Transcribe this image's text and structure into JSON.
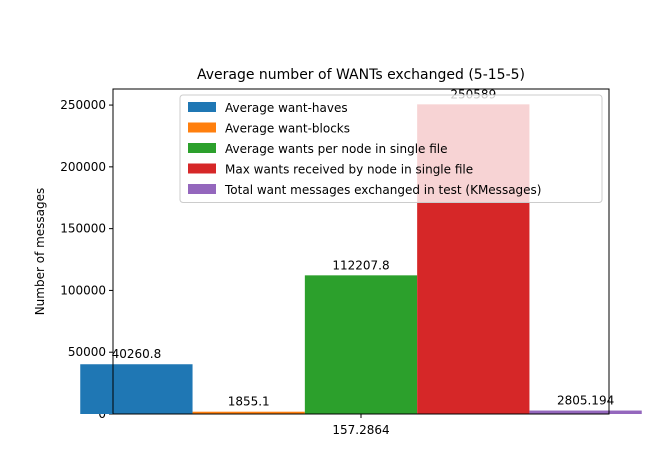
{
  "chart_data": {
    "type": "bar",
    "title": "Average number of WANTs exchanged (5-15-5)",
    "xlabel": "",
    "ylabel": "Number of messages",
    "categories": [
      "157.2864"
    ],
    "ylim": [
      0,
      263000
    ],
    "yticks": [
      0,
      50000,
      100000,
      150000,
      200000,
      250000
    ],
    "ytick_labels": [
      "0",
      "50000",
      "100000",
      "150000",
      "200000",
      "250000"
    ],
    "grid": false,
    "legend_position": "upper center",
    "series": [
      {
        "name": "Average want-haves",
        "values": [
          40260.8
        ],
        "label": "40260.8",
        "color": "#1f77b4"
      },
      {
        "name": "Average want-blocks",
        "values": [
          1855.1
        ],
        "label": "1855.1",
        "color": "#ff7f0e"
      },
      {
        "name": "Average wants per node in single file",
        "values": [
          112207.8
        ],
        "label": "112207.8",
        "color": "#2ca02c"
      },
      {
        "name": "Max wants received by node in single file",
        "values": [
          250589
        ],
        "label": "250589",
        "color": "#d62728"
      },
      {
        "name": "Total want messages exchanged in test (KMessages)",
        "values": [
          2805.194
        ],
        "label": "2805.194",
        "color": "#9467bd"
      }
    ]
  }
}
